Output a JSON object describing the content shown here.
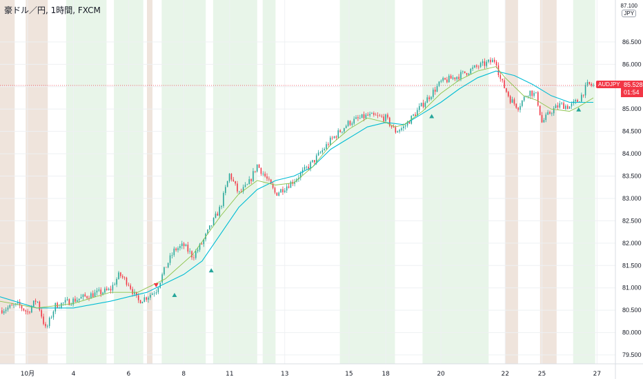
{
  "header": {
    "title": "豪ドル／円, 1時間, FXCM"
  },
  "currency_badge": {
    "top": "87.100",
    "label": "JPY"
  },
  "symbol_tag": "AUDJPY",
  "price_tag": {
    "price": "85.528",
    "countdown": "01:54"
  },
  "colors": {
    "up": "#26a69a",
    "down": "#f23645",
    "ma_fast": "#8bc34a",
    "ma_slow": "#00bcd4",
    "bg_green": "#e8f5e9",
    "bg_beige": "#efe4dc",
    "last_price_line": "#f23645"
  },
  "chart_data": {
    "type": "candlestick",
    "y_ticks": [
      "79.500",
      "80.000",
      "80.500",
      "81.000",
      "81.500",
      "82.000",
      "82.500",
      "83.000",
      "83.500",
      "84.000",
      "84.500",
      "85.000",
      "85.500",
      "86.000",
      "86.500"
    ],
    "x_ticks": [
      {
        "label": "10月",
        "x": 0.5
      },
      {
        "label": "4",
        "x": 3
      },
      {
        "label": "6",
        "x": 6
      },
      {
        "label": "8",
        "x": 9
      },
      {
        "label": "11",
        "x": 11.5
      },
      {
        "label": "13",
        "x": 14.5
      },
      {
        "label": "15",
        "x": 18
      },
      {
        "label": "18",
        "x": 20
      },
      {
        "label": "20",
        "x": 23
      },
      {
        "label": "22",
        "x": 26.5
      },
      {
        "label": "25",
        "x": 28.5
      },
      {
        "label": "27",
        "x": 31.5
      }
    ],
    "ylim": [
      79.3,
      87.1
    ],
    "xlim": [
      -1,
      32.5
    ],
    "last_price": 85.528,
    "close_path": [
      [
        -1,
        80.5
      ],
      [
        0,
        80.62
      ],
      [
        0.5,
        80.45
      ],
      [
        1,
        80.75
      ],
      [
        1.5,
        80.05
      ],
      [
        2,
        80.6
      ],
      [
        3,
        80.72
      ],
      [
        4,
        80.85
      ],
      [
        5,
        80.95
      ],
      [
        5.5,
        81.3
      ],
      [
        6,
        81.1
      ],
      [
        6.5,
        80.7
      ],
      [
        7,
        80.8
      ],
      [
        7.5,
        80.95
      ],
      [
        8,
        81.45
      ],
      [
        8.5,
        81.85
      ],
      [
        9,
        81.95
      ],
      [
        9.5,
        81.7
      ],
      [
        10,
        82.0
      ],
      [
        11,
        82.8
      ],
      [
        11.5,
        83.55
      ],
      [
        12,
        83.1
      ],
      [
        12.5,
        83.3
      ],
      [
        13,
        83.75
      ],
      [
        13.5,
        83.45
      ],
      [
        14,
        83.1
      ],
      [
        14.5,
        83.25
      ],
      [
        15,
        83.4
      ],
      [
        16,
        83.8
      ],
      [
        17,
        84.3
      ],
      [
        18,
        84.7
      ],
      [
        19,
        84.85
      ],
      [
        20,
        84.8
      ],
      [
        20.5,
        84.5
      ],
      [
        21,
        84.6
      ],
      [
        21.5,
        84.85
      ],
      [
        22,
        85.1
      ],
      [
        22.5,
        85.35
      ],
      [
        23,
        85.6
      ],
      [
        24,
        85.75
      ],
      [
        25,
        85.95
      ],
      [
        26,
        86.1
      ],
      [
        26.2,
        85.7
      ],
      [
        26.8,
        85.2
      ],
      [
        27.2,
        85.05
      ],
      [
        27.8,
        85.4
      ],
      [
        28.2,
        85.3
      ],
      [
        28.5,
        84.7
      ],
      [
        29,
        84.95
      ],
      [
        29.5,
        85.1
      ],
      [
        30,
        85.05
      ],
      [
        30.5,
        85.2
      ],
      [
        31,
        85.55
      ],
      [
        31.3,
        85.52
      ]
    ],
    "ma_fast_path": [
      [
        -1,
        80.7
      ],
      [
        1,
        80.55
      ],
      [
        3,
        80.65
      ],
      [
        5,
        80.9
      ],
      [
        6.5,
        80.9
      ],
      [
        8,
        81.2
      ],
      [
        9.5,
        81.75
      ],
      [
        11,
        82.6
      ],
      [
        12,
        83.1
      ],
      [
        13,
        83.4
      ],
      [
        14,
        83.3
      ],
      [
        15,
        83.35
      ],
      [
        16,
        83.7
      ],
      [
        17,
        84.2
      ],
      [
        18,
        84.55
      ],
      [
        19,
        84.8
      ],
      [
        20,
        84.7
      ],
      [
        20.5,
        84.6
      ],
      [
        21,
        84.65
      ],
      [
        22,
        84.95
      ],
      [
        23,
        85.35
      ],
      [
        24,
        85.65
      ],
      [
        25,
        85.85
      ],
      [
        26,
        85.95
      ],
      [
        26.5,
        85.7
      ],
      [
        27.5,
        85.3
      ],
      [
        28.2,
        85.2
      ],
      [
        29,
        85.0
      ],
      [
        30,
        84.95
      ],
      [
        30.5,
        85.05
      ],
      [
        31.3,
        85.25
      ]
    ],
    "ma_slow_path": [
      [
        -1,
        80.8
      ],
      [
        1,
        80.55
      ],
      [
        3,
        80.55
      ],
      [
        5,
        80.7
      ],
      [
        7,
        80.9
      ],
      [
        9,
        81.3
      ],
      [
        10,
        81.6
      ],
      [
        11,
        82.2
      ],
      [
        12,
        82.8
      ],
      [
        13,
        83.2
      ],
      [
        14,
        83.4
      ],
      [
        15,
        83.5
      ],
      [
        16,
        83.7
      ],
      [
        17,
        84.1
      ],
      [
        18,
        84.35
      ],
      [
        19,
        84.6
      ],
      [
        20,
        84.7
      ],
      [
        21,
        84.65
      ],
      [
        22,
        84.9
      ],
      [
        23,
        85.15
      ],
      [
        24,
        85.45
      ],
      [
        25,
        85.7
      ],
      [
        26,
        85.85
      ],
      [
        27,
        85.75
      ],
      [
        28,
        85.55
      ],
      [
        29,
        85.3
      ],
      [
        30,
        85.15
      ],
      [
        31.3,
        85.15
      ]
    ],
    "signals": [
      {
        "x": 7.5,
        "y": 80.95,
        "dir": "down"
      },
      {
        "x": 8.5,
        "y": 80.95,
        "dir": "up"
      },
      {
        "x": 10.5,
        "y": 81.5,
        "dir": "up"
      },
      {
        "x": 22.5,
        "y": 84.95,
        "dir": "up"
      },
      {
        "x": 30.5,
        "y": 85.1,
        "dir": "up"
      }
    ],
    "bg_bands": [
      {
        "from": -1,
        "to": -0.2,
        "kind": "beige"
      },
      {
        "from": 0.4,
        "to": 1.6,
        "kind": "beige"
      },
      {
        "from": 2.6,
        "to": 4.8,
        "kind": "green"
      },
      {
        "from": 5.2,
        "to": 6.8,
        "kind": "green"
      },
      {
        "from": 7.0,
        "to": 7.3,
        "kind": "beige"
      },
      {
        "from": 7.8,
        "to": 10.2,
        "kind": "green"
      },
      {
        "from": 10.6,
        "to": 13.0,
        "kind": "green"
      },
      {
        "from": 13.3,
        "to": 14.0,
        "kind": "green"
      },
      {
        "from": 17.5,
        "to": 20.5,
        "kind": "green"
      },
      {
        "from": 22.0,
        "to": 25.6,
        "kind": "green"
      },
      {
        "from": 26.5,
        "to": 27.2,
        "kind": "beige"
      },
      {
        "from": 28.4,
        "to": 29.3,
        "kind": "beige"
      },
      {
        "from": 30.2,
        "to": 31.4,
        "kind": "green"
      }
    ]
  }
}
